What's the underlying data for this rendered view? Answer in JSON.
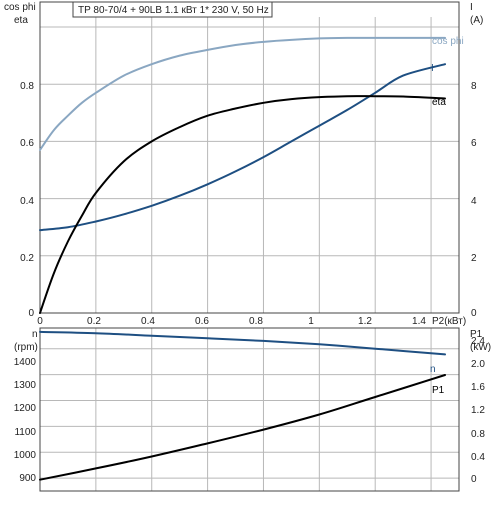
{
  "chart_data": [
    {
      "type": "line",
      "title": "TP 80-70/4 + 90LB    1.1 кВт    1* 230 V, 50 Hz",
      "xlabel": "P2(кВт)",
      "xlim": [
        0,
        1.5
      ],
      "x_ticks": [
        "0",
        "0.2",
        "0.4",
        "0.6",
        "0.8",
        "1",
        "1.2",
        "1.4"
      ],
      "y_left_label_top": "cos phi",
      "y_left_label_bottom": "eta",
      "y_left_lim": [
        0,
        1
      ],
      "y_left_ticks": [
        "0",
        "0.2",
        "0.4",
        "0.6",
        "0.8"
      ],
      "y_right_label": "I",
      "y_right_unit": "(A)",
      "y_right_lim": [
        0,
        10
      ],
      "y_right_ticks": [
        "0",
        "2",
        "4",
        "6",
        "8"
      ],
      "grid": true,
      "series": [
        {
          "name": "cos phi",
          "axis": "left",
          "color": "#8aa7c2",
          "x": [
            0,
            0.05,
            0.1,
            0.15,
            0.2,
            0.3,
            0.4,
            0.5,
            0.6,
            0.7,
            0.8,
            0.9,
            1.0,
            1.1,
            1.2,
            1.3,
            1.45
          ],
          "y": [
            0.57,
            0.64,
            0.69,
            0.735,
            0.77,
            0.83,
            0.87,
            0.9,
            0.92,
            0.937,
            0.948,
            0.955,
            0.96,
            0.962,
            0.962,
            0.962,
            0.962
          ]
        },
        {
          "name": "I",
          "axis": "right",
          "color": "#1e4f82",
          "x": [
            0,
            0.1,
            0.2,
            0.3,
            0.4,
            0.5,
            0.6,
            0.7,
            0.8,
            0.9,
            1.0,
            1.1,
            1.2,
            1.3,
            1.45
          ],
          "y": [
            2.9,
            3.0,
            3.2,
            3.45,
            3.75,
            4.1,
            4.5,
            4.95,
            5.45,
            6.0,
            6.55,
            7.1,
            7.7,
            8.3,
            8.7
          ]
        },
        {
          "name": "eta",
          "axis": "left",
          "color": "#000000",
          "x": [
            0,
            0.05,
            0.1,
            0.15,
            0.2,
            0.3,
            0.4,
            0.5,
            0.6,
            0.7,
            0.8,
            0.9,
            1.0,
            1.1,
            1.2,
            1.3,
            1.45
          ],
          "y": [
            0,
            0.14,
            0.25,
            0.34,
            0.42,
            0.53,
            0.6,
            0.65,
            0.69,
            0.715,
            0.735,
            0.748,
            0.755,
            0.758,
            0.758,
            0.757,
            0.75
          ]
        }
      ]
    },
    {
      "type": "line",
      "y_left_label": "n",
      "y_left_unit": "(rpm)",
      "y_left_lim": [
        850,
        1480
      ],
      "y_left_ticks": [
        "900",
        "1000",
        "1100",
        "1200",
        "1300",
        "1400"
      ],
      "y_right_label": "P1",
      "y_right_unit": "(kW)",
      "y_right_lim": [
        0,
        2.6
      ],
      "y_right_ticks": [
        "0",
        "0.4",
        "0.8",
        "1.2",
        "1.6",
        "2.0",
        "2.4"
      ],
      "xlim": [
        0,
        1.5
      ],
      "grid": true,
      "series": [
        {
          "name": "n",
          "axis": "left",
          "color": "#1e4f82",
          "x": [
            0,
            0.2,
            0.4,
            0.6,
            0.8,
            1.0,
            1.2,
            1.45
          ],
          "y": [
            1465,
            1460,
            1450,
            1440,
            1430,
            1417,
            1400,
            1378
          ]
        },
        {
          "name": "P1",
          "axis": "right",
          "color": "#000000",
          "x": [
            0,
            0.2,
            0.4,
            0.6,
            0.8,
            1.0,
            1.2,
            1.45
          ],
          "y": [
            0.18,
            0.36,
            0.55,
            0.76,
            0.98,
            1.22,
            1.5,
            1.85
          ]
        }
      ]
    }
  ]
}
